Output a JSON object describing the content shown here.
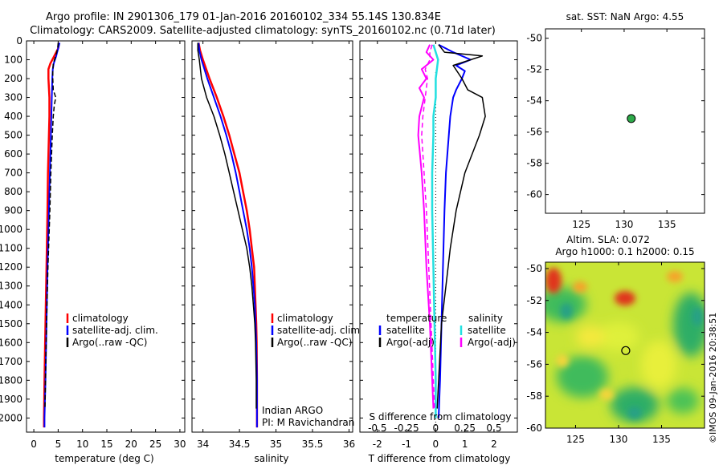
{
  "title_line1": "Argo profile: IN 2901306_179 01-Jan-2016 20160102_334 55.14S 130.834E",
  "title_line2": "Climatology: CARS2009. Satellite-adjusted climatology: synTS_20160102.nc (0.71d later)",
  "credit": "©IMOS 09-Jan-2016 20:38:51",
  "colors": {
    "climatology": "#ff0000",
    "satellite": "#0000ff",
    "argo": "#000000",
    "salinity_satellite": "#22e0e0",
    "salinity_argo": "#ff00ff",
    "marker": "#2eaa4a"
  },
  "chart_data": [
    {
      "id": "temperature",
      "type": "line",
      "xlabel": "temperature (deg C)",
      "ylabel": "depth",
      "xlim": [
        -1.5,
        31
      ],
      "ylim": [
        0,
        2075
      ],
      "xticks": [
        "0",
        "5",
        "10",
        "15",
        "20",
        "25",
        "30"
      ],
      "yticks": [
        "0",
        "100",
        "200",
        "300",
        "400",
        "500",
        "600",
        "700",
        "800",
        "900",
        "1000",
        "1100",
        "1200",
        "1300",
        "1400",
        "1500",
        "1600",
        "1700",
        "1800",
        "1900",
        "2000"
      ],
      "legend": [
        "climatology",
        "satellite-adj. clim.",
        "Argo(..raw -QC)"
      ],
      "series": [
        {
          "name": "climatology",
          "depth": [
            10,
            40,
            80,
            120,
            150,
            200,
            300,
            400,
            500,
            700,
            900,
            1200,
            1500,
            1800,
            2000,
            2050
          ],
          "values": [
            5.2,
            5.0,
            4.2,
            3.4,
            3.0,
            3.0,
            3.2,
            3.2,
            3.1,
            2.9,
            2.8,
            2.6,
            2.4,
            2.2,
            2.1,
            2.1
          ]
        },
        {
          "name": "satellite-adj. clim.",
          "depth": [
            10,
            40,
            80,
            120,
            150,
            200,
            300,
            400,
            500,
            700,
            900,
            1200,
            1500,
            1800,
            2000,
            2050
          ],
          "values": [
            5.3,
            5.0,
            4.6,
            4.1,
            3.9,
            3.8,
            3.7,
            3.6,
            3.5,
            3.3,
            3.1,
            2.8,
            2.6,
            2.4,
            2.2,
            2.2
          ]
        },
        {
          "name": "Argo(..raw -QC)",
          "depth": [
            10,
            40,
            80,
            120,
            160,
            200,
            260,
            300,
            340,
            400,
            500,
            700,
            900,
            1200,
            1500,
            1800,
            1950
          ],
          "values": [
            5.0,
            4.9,
            4.5,
            4.0,
            3.9,
            3.9,
            4.0,
            4.5,
            4.2,
            4.0,
            3.8,
            3.5,
            3.3,
            2.9,
            2.6,
            2.4,
            2.3
          ]
        }
      ]
    },
    {
      "id": "salinity",
      "type": "line",
      "xlabel": "salinity",
      "ylabel": "depth",
      "xlim": [
        33.85,
        36.05
      ],
      "ylim": [
        0,
        2075
      ],
      "xticks": [
        "34",
        "34.5",
        "35",
        "35.5",
        "36"
      ],
      "legend": [
        "climatology",
        "satellite-adj. clim.",
        "Argo(..raw -QC)"
      ],
      "annotation": [
        "Indian ARGO",
        "PI: M Ravichandran"
      ],
      "series": [
        {
          "name": "climatology",
          "depth": [
            10,
            50,
            100,
            200,
            300,
            400,
            500,
            600,
            700,
            800,
            900,
            1000,
            1100,
            1200,
            1300,
            1400,
            1500,
            1600,
            1800,
            2050
          ],
          "values": [
            33.94,
            33.96,
            34.0,
            34.09,
            34.19,
            34.28,
            34.36,
            34.43,
            34.5,
            34.55,
            34.6,
            34.64,
            34.67,
            34.7,
            34.71,
            34.72,
            34.73,
            34.735,
            34.74,
            34.74
          ]
        },
        {
          "name": "satellite-adj. clim.",
          "depth": [
            10,
            50,
            100,
            200,
            300,
            400,
            500,
            600,
            700,
            800,
            900,
            1000,
            1100,
            1200,
            1300,
            1400,
            1500,
            1600,
            1800,
            2050
          ],
          "values": [
            33.94,
            33.95,
            33.98,
            34.06,
            34.15,
            34.24,
            34.32,
            34.39,
            34.45,
            34.5,
            34.55,
            34.6,
            34.64,
            34.67,
            34.69,
            34.71,
            34.72,
            34.73,
            34.74,
            34.74
          ]
        },
        {
          "name": "Argo(..raw -QC)",
          "depth": [
            10,
            50,
            100,
            200,
            300,
            400,
            500,
            600,
            700,
            800,
            900,
            1000,
            1100,
            1200,
            1300,
            1400,
            1500,
            1600,
            1800,
            1950
          ],
          "values": [
            33.93,
            33.93,
            33.95,
            33.98,
            34.05,
            34.15,
            34.23,
            34.3,
            34.36,
            34.42,
            34.48,
            34.54,
            34.6,
            34.64,
            34.67,
            34.69,
            34.71,
            34.72,
            34.73,
            34.73
          ]
        }
      ]
    },
    {
      "id": "difference",
      "type": "line",
      "xlabel": "T difference from climatology",
      "xlabel_top": "S difference from climatology",
      "xlim": [
        -2.6,
        2.8
      ],
      "ylim": [
        0,
        2075
      ],
      "xticks": [
        "-2",
        "-1",
        "0",
        "1",
        "2"
      ],
      "xticks_salinity": [
        "-0.5",
        "-0.25",
        "0",
        "0.25",
        "0.5"
      ],
      "legend_headers": [
        "temperature",
        "salinity"
      ],
      "legend": [
        "satellite",
        "Argo(-adj)",
        "satellite",
        "Argo(-adj)"
      ],
      "series": [
        {
          "name": "temperature satellite",
          "depth": [
            20,
            60,
            100,
            130,
            160,
            200,
            260,
            300,
            400,
            500,
            700,
            900,
            1200,
            1500,
            1800,
            2000
          ],
          "values": [
            0.1,
            0.6,
            1.2,
            0.7,
            1.0,
            0.9,
            0.7,
            0.6,
            0.5,
            0.45,
            0.35,
            0.3,
            0.25,
            0.2,
            0.15,
            0.1
          ]
        },
        {
          "name": "temperature Argo(-adj)",
          "depth": [
            20,
            60,
            80,
            100,
            130,
            200,
            260,
            300,
            400,
            500,
            700,
            900,
            1100,
            1300,
            1500,
            1800,
            1950
          ],
          "values": [
            0.1,
            0.3,
            1.6,
            1.2,
            0.6,
            0.9,
            1.1,
            1.6,
            1.7,
            1.5,
            1.0,
            0.7,
            0.5,
            0.35,
            0.2,
            0.1,
            0.05
          ]
        },
        {
          "name": "salinity satellite",
          "depth": [
            20,
            60,
            100,
            200,
            300,
            400,
            500,
            700,
            900,
            1200,
            1500,
            1800,
            2000
          ],
          "values": [
            -0.02,
            0.0,
            0.02,
            0.0,
            0.0,
            -0.02,
            -0.02,
            -0.03,
            -0.03,
            -0.02,
            -0.01,
            0.0,
            0.0
          ]
        },
        {
          "name": "salinity Argo(-adj)",
          "depth": [
            20,
            60,
            100,
            150,
            200,
            250,
            300,
            400,
            500,
            700,
            900,
            1200,
            1500,
            1800,
            1950
          ],
          "values": [
            -0.05,
            -0.08,
            -0.02,
            -0.12,
            -0.08,
            -0.14,
            -0.1,
            -0.14,
            -0.15,
            -0.12,
            -0.1,
            -0.08,
            -0.05,
            -0.03,
            -0.02
          ]
        },
        {
          "name": "salinity Argo(-adj) dashed",
          "depth": [
            20,
            60,
            100,
            150,
            200,
            300,
            400,
            500,
            700,
            900,
            1200,
            1500,
            1800,
            1950
          ],
          "values": [
            -0.03,
            -0.05,
            -0.05,
            -0.09,
            -0.07,
            -0.09,
            -0.11,
            -0.12,
            -0.1,
            -0.08,
            -0.06,
            -0.04,
            -0.02,
            -0.01
          ]
        }
      ]
    },
    {
      "id": "sst-map",
      "type": "scatter",
      "title": "sat. SST: NaN Argo: 4.55",
      "xlim": [
        120.8,
        139.4
      ],
      "ylim": [
        -61.2,
        -49.4
      ],
      "xticks": [
        "125",
        "130",
        "135"
      ],
      "yticks": [
        "-50",
        "-52",
        "-54",
        "-56",
        "-58",
        "-60"
      ],
      "point": {
        "lon": 130.834,
        "lat": -55.14
      }
    },
    {
      "id": "sla-map",
      "type": "heatmap",
      "title_line1": "Altim. SLA: 0.072",
      "title_line2": "Argo h1000: 0.1 h2000: 0.15",
      "xlim": [
        121.5,
        140.0
      ],
      "ylim": [
        -60.0,
        -49.6
      ],
      "xticks": [
        "125",
        "130",
        "135"
      ],
      "yticks": [
        "-50",
        "-52",
        "-54",
        "-56",
        "-58",
        "-60"
      ],
      "point": {
        "lon": 130.834,
        "lat": -55.14
      }
    }
  ]
}
